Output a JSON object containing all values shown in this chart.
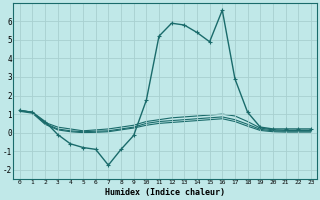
{
  "xlabel": "Humidex (Indice chaleur)",
  "bg_color": "#c0e8e8",
  "line_color": "#1a6b6b",
  "grid_color": "#a8d0d0",
  "xlim": [
    -0.5,
    23.5
  ],
  "ylim": [
    -2.5,
    7.0
  ],
  "yticks": [
    -2,
    -1,
    0,
    1,
    2,
    3,
    4,
    5,
    6
  ],
  "xticks": [
    0,
    1,
    2,
    3,
    4,
    5,
    6,
    7,
    8,
    9,
    10,
    11,
    12,
    13,
    14,
    15,
    16,
    17,
    18,
    19,
    20,
    21,
    22,
    23
  ],
  "xtick_labels": [
    "0",
    "1",
    "2",
    "3",
    "4",
    "5",
    "6",
    "7",
    "8",
    "9",
    "10",
    "11",
    "12",
    "13",
    "14",
    "15",
    "16",
    "17",
    "18",
    "19",
    "20",
    "21",
    "22",
    "23"
  ],
  "series": [
    {
      "x": [
        0,
        1,
        2,
        3,
        4,
        5,
        6,
        7,
        8,
        9,
        10,
        11,
        12,
        13,
        14,
        15,
        16,
        17,
        18,
        19,
        20,
        21,
        22,
        23
      ],
      "y": [
        1.2,
        1.1,
        0.6,
        -0.1,
        -0.6,
        -0.8,
        -0.9,
        -1.75,
        -0.9,
        -0.15,
        1.75,
        5.2,
        5.9,
        5.8,
        5.4,
        4.9,
        6.6,
        2.9,
        1.1,
        0.3,
        0.2,
        0.2,
        0.2,
        0.2
      ],
      "marker": true,
      "lw": 1.0
    },
    {
      "x": [
        0,
        1,
        2,
        3,
        4,
        5,
        6,
        7,
        8,
        9,
        10,
        11,
        12,
        13,
        14,
        15,
        16,
        17,
        18,
        19,
        20,
        21,
        22,
        23
      ],
      "y": [
        1.2,
        1.1,
        0.55,
        0.3,
        0.2,
        0.1,
        0.15,
        0.2,
        0.3,
        0.4,
        0.6,
        0.7,
        0.8,
        0.85,
        0.9,
        0.95,
        1.0,
        0.9,
        0.6,
        0.25,
        0.15,
        0.12,
        0.12,
        0.12
      ],
      "marker": false,
      "lw": 0.8
    },
    {
      "x": [
        0,
        1,
        2,
        3,
        4,
        5,
        6,
        7,
        8,
        9,
        10,
        11,
        12,
        13,
        14,
        15,
        16,
        17,
        18,
        19,
        20,
        21,
        22,
        23
      ],
      "y": [
        1.2,
        1.1,
        0.5,
        0.2,
        0.1,
        0.05,
        0.08,
        0.1,
        0.2,
        0.3,
        0.5,
        0.6,
        0.65,
        0.7,
        0.75,
        0.8,
        0.85,
        0.7,
        0.45,
        0.18,
        0.1,
        0.08,
        0.08,
        0.08
      ],
      "marker": false,
      "lw": 0.8
    },
    {
      "x": [
        0,
        1,
        2,
        3,
        4,
        5,
        6,
        7,
        8,
        9,
        10,
        11,
        12,
        13,
        14,
        15,
        16,
        17,
        18,
        19,
        20,
        21,
        22,
        23
      ],
      "y": [
        1.15,
        1.05,
        0.45,
        0.15,
        0.05,
        0.0,
        0.02,
        0.05,
        0.15,
        0.25,
        0.4,
        0.5,
        0.55,
        0.6,
        0.65,
        0.7,
        0.75,
        0.6,
        0.35,
        0.12,
        0.05,
        0.03,
        0.03,
        0.03
      ],
      "marker": false,
      "lw": 0.8
    }
  ]
}
